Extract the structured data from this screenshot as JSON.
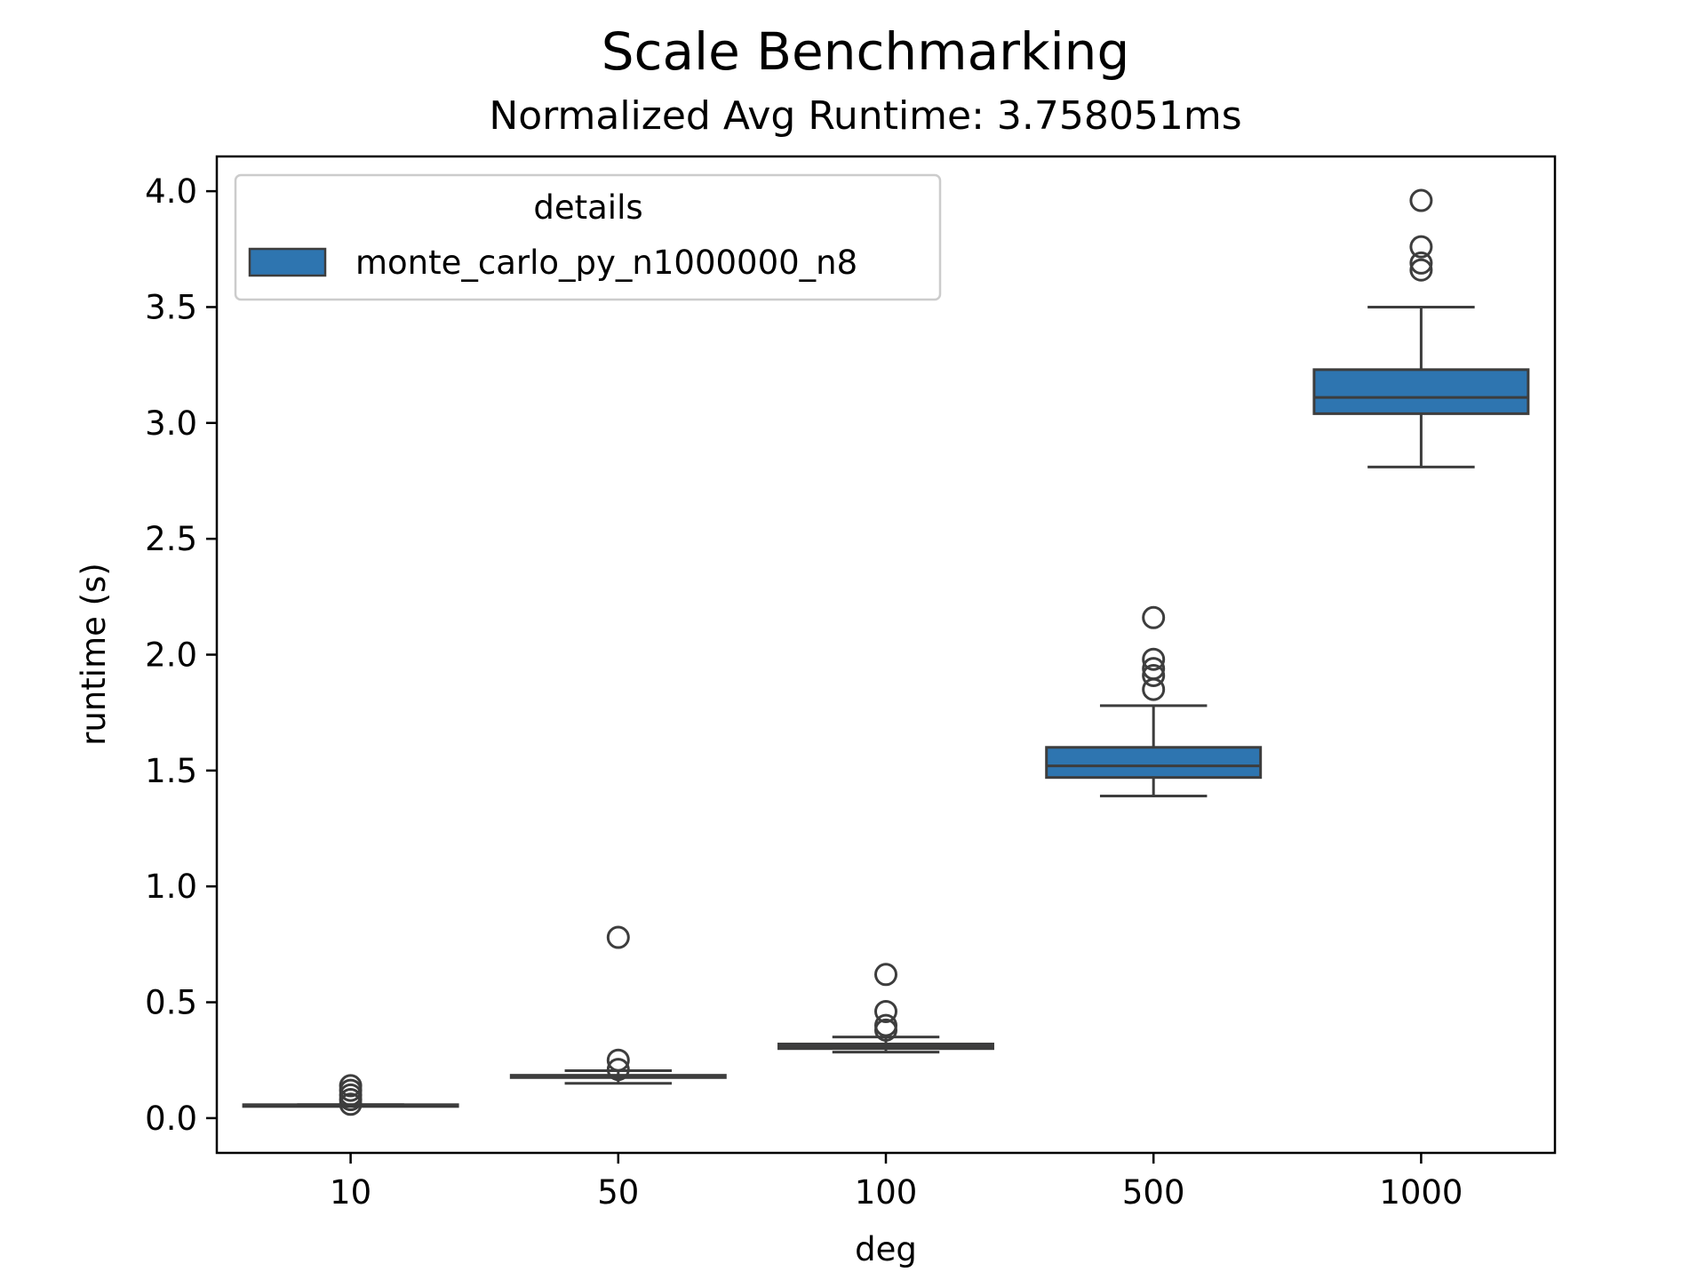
{
  "chart_data": {
    "type": "box",
    "title": "Scale Benchmarking",
    "subtitle": "Normalized Avg Runtime: 3.758051ms",
    "xlabel": "deg",
    "ylabel": "runtime (s)",
    "ylim": [
      -0.15,
      4.15
    ],
    "yticks": [
      "0.0",
      "0.5",
      "1.0",
      "1.5",
      "2.0",
      "2.5",
      "3.0",
      "3.5",
      "4.0"
    ],
    "ytick_values": [
      0.0,
      0.5,
      1.0,
      1.5,
      2.0,
      2.5,
      3.0,
      3.5,
      4.0
    ],
    "categories": [
      "10",
      "50",
      "100",
      "500",
      "1000"
    ],
    "legend": {
      "title": "details",
      "location": "upper left",
      "entries": [
        "monte_carlo_py_n1000000_n8"
      ]
    },
    "colors": {
      "box_fill": "#2e75b0",
      "box_edge": "#3d3d3d"
    },
    "grid": false,
    "series": [
      {
        "name": "monte_carlo_py_n1000000_n8",
        "boxes": [
          {
            "category": "10",
            "whislo": 0.055,
            "q1": 0.055,
            "med": 0.056,
            "q3": 0.058,
            "whishi": 0.058,
            "fliers": [
              0.14,
              0.12,
              0.1,
              0.08,
              0.06
            ]
          },
          {
            "category": "50",
            "whislo": 0.15,
            "q1": 0.175,
            "med": 0.18,
            "q3": 0.185,
            "whishi": 0.205,
            "fliers": [
              0.78,
              0.25,
              0.21
            ]
          },
          {
            "category": "100",
            "whislo": 0.285,
            "q1": 0.3,
            "med": 0.31,
            "q3": 0.32,
            "whishi": 0.35,
            "fliers": [
              0.62,
              0.46,
              0.4,
              0.38
            ]
          },
          {
            "category": "500",
            "whislo": 1.39,
            "q1": 1.47,
            "med": 1.52,
            "q3": 1.6,
            "whishi": 1.78,
            "fliers": [
              2.16,
              1.98,
              1.94,
              1.91,
              1.85
            ]
          },
          {
            "category": "1000",
            "whislo": 2.81,
            "q1": 3.04,
            "med": 3.11,
            "q3": 3.23,
            "whishi": 3.5,
            "fliers": [
              3.96,
              3.76,
              3.69,
              3.66
            ]
          }
        ]
      }
    ]
  }
}
